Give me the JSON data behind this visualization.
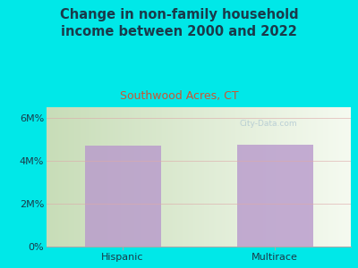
{
  "title": "Change in non-family household\nincome between 2000 and 2022",
  "subtitle": "Southwood Acres, CT",
  "categories": [
    "Hispanic",
    "Multirace"
  ],
  "values": [
    4700000,
    4750000
  ],
  "bar_color": "#b899cc",
  "yticks": [
    0,
    2000000,
    4000000,
    6000000
  ],
  "ytick_labels": [
    "0%",
    "2M%",
    "4M%",
    "6M%"
  ],
  "ylim": [
    0,
    6500000
  ],
  "bg_color": "#00e8e8",
  "title_color": "#1a3a4a",
  "subtitle_color": "#cc5533",
  "tick_label_color": "#1a3a4a",
  "watermark": "City-Data.com",
  "title_fontsize": 10.5,
  "subtitle_fontsize": 9,
  "tick_fontsize": 8,
  "grid_color": "#ddaaaa",
  "plot_grad_left": "#c8ddb8",
  "plot_grad_right": "#f5faf0"
}
